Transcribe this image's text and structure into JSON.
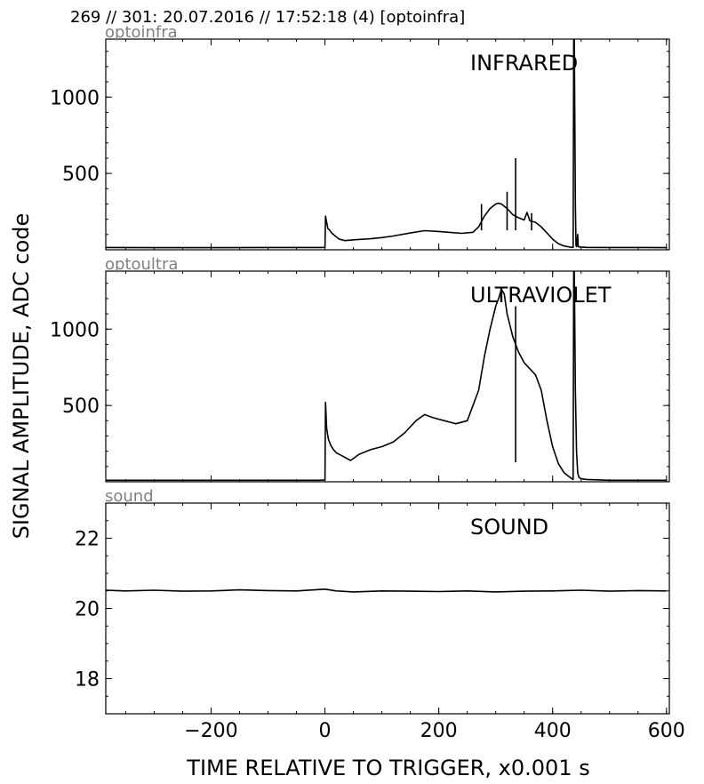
{
  "header": "269 // 301:   20.07.2016 // 17:52:18 (4)  [optoinfra]",
  "ylabel": "SIGNAL AMPLITUDE,  ADC code",
  "xlabel": "TIME RELATIVE TO TRIGGER,   x0.001 s",
  "chart_data": [
    {
      "type": "line",
      "tag": "optoinfra",
      "title": "INFRARED",
      "xlim": [
        -385,
        605
      ],
      "ylim": [
        0,
        1380
      ],
      "yticks": [
        500,
        1000
      ],
      "series": [
        {
          "x": [
            -385,
            -300,
            -200,
            -100,
            -10,
            0,
            1,
            3,
            5,
            8,
            12,
            18,
            25,
            35,
            50,
            80,
            100,
            120,
            150,
            175,
            200,
            240,
            260,
            270,
            280,
            290,
            300,
            305,
            310,
            320,
            330,
            340,
            350,
            355,
            360,
            370,
            380,
            390,
            400,
            410,
            420,
            430,
            436,
            437,
            438,
            440,
            441,
            442,
            443,
            444,
            445,
            450,
            460,
            500,
            560,
            600
          ],
          "y": [
            15,
            14,
            14,
            15,
            15,
            16,
            220,
            180,
            140,
            130,
            110,
            90,
            70,
            60,
            65,
            72,
            80,
            90,
            110,
            125,
            120,
            108,
            115,
            150,
            220,
            270,
            300,
            305,
            300,
            270,
            230,
            210,
            195,
            245,
            190,
            180,
            150,
            110,
            70,
            40,
            25,
            18,
            16,
            1380,
            1380,
            300,
            30,
            20,
            60,
            100,
            20,
            18,
            16,
            15,
            15,
            14
          ]
        }
      ],
      "spikes": [
        {
          "x": 335,
          "y": 600
        },
        {
          "x": 275,
          "y": 300
        },
        {
          "x": 320,
          "y": 380
        },
        {
          "x": 363,
          "y": 240
        }
      ]
    },
    {
      "type": "line",
      "tag": "optoultra",
      "title": "ULTRAVIOLET",
      "xlim": [
        -385,
        605
      ],
      "ylim": [
        0,
        1380
      ],
      "yticks": [
        500,
        1000
      ],
      "series": [
        {
          "x": [
            -385,
            -300,
            -200,
            -100,
            -10,
            0,
            1,
            3,
            6,
            10,
            15,
            20,
            30,
            45,
            60,
            80,
            100,
            120,
            140,
            160,
            175,
            190,
            210,
            230,
            250,
            270,
            280,
            290,
            300,
            305,
            310,
            315,
            320,
            330,
            340,
            350,
            360,
            370,
            380,
            390,
            400,
            410,
            420,
            430,
            436,
            437,
            438,
            440,
            442,
            444,
            446,
            450,
            460,
            500,
            560,
            600
          ],
          "y": [
            10,
            10,
            10,
            10,
            10,
            12,
            520,
            350,
            280,
            240,
            210,
            190,
            170,
            140,
            180,
            210,
            230,
            260,
            320,
            400,
            440,
            420,
            400,
            380,
            400,
            600,
            820,
            1000,
            1150,
            1200,
            1260,
            1230,
            1100,
            950,
            850,
            780,
            740,
            700,
            600,
            400,
            230,
            120,
            60,
            30,
            15,
            1380,
            1380,
            600,
            200,
            60,
            30,
            20,
            15,
            10,
            10,
            10
          ]
        }
      ],
      "spikes": [
        {
          "x": 335,
          "y": 1150
        }
      ]
    },
    {
      "type": "line",
      "tag": "sound",
      "title": "SOUND",
      "xlim": [
        -385,
        605
      ],
      "ylim": [
        17,
        23
      ],
      "yticks": [
        18,
        20,
        22
      ],
      "series": [
        {
          "x": [
            -385,
            -350,
            -300,
            -250,
            -200,
            -150,
            -100,
            -50,
            0,
            20,
            50,
            100,
            150,
            200,
            250,
            300,
            350,
            400,
            450,
            500,
            550,
            600
          ],
          "y": [
            20.52,
            20.5,
            20.52,
            20.49,
            20.5,
            20.53,
            20.51,
            20.5,
            20.55,
            20.5,
            20.47,
            20.5,
            20.49,
            20.48,
            20.5,
            20.47,
            20.49,
            20.5,
            20.52,
            20.49,
            20.51,
            20.5
          ]
        }
      ],
      "spikes": []
    }
  ],
  "xticks": [
    -200,
    0,
    200,
    400,
    600
  ],
  "xtick_labels": [
    "−200",
    "0",
    "200",
    "400",
    "600"
  ]
}
